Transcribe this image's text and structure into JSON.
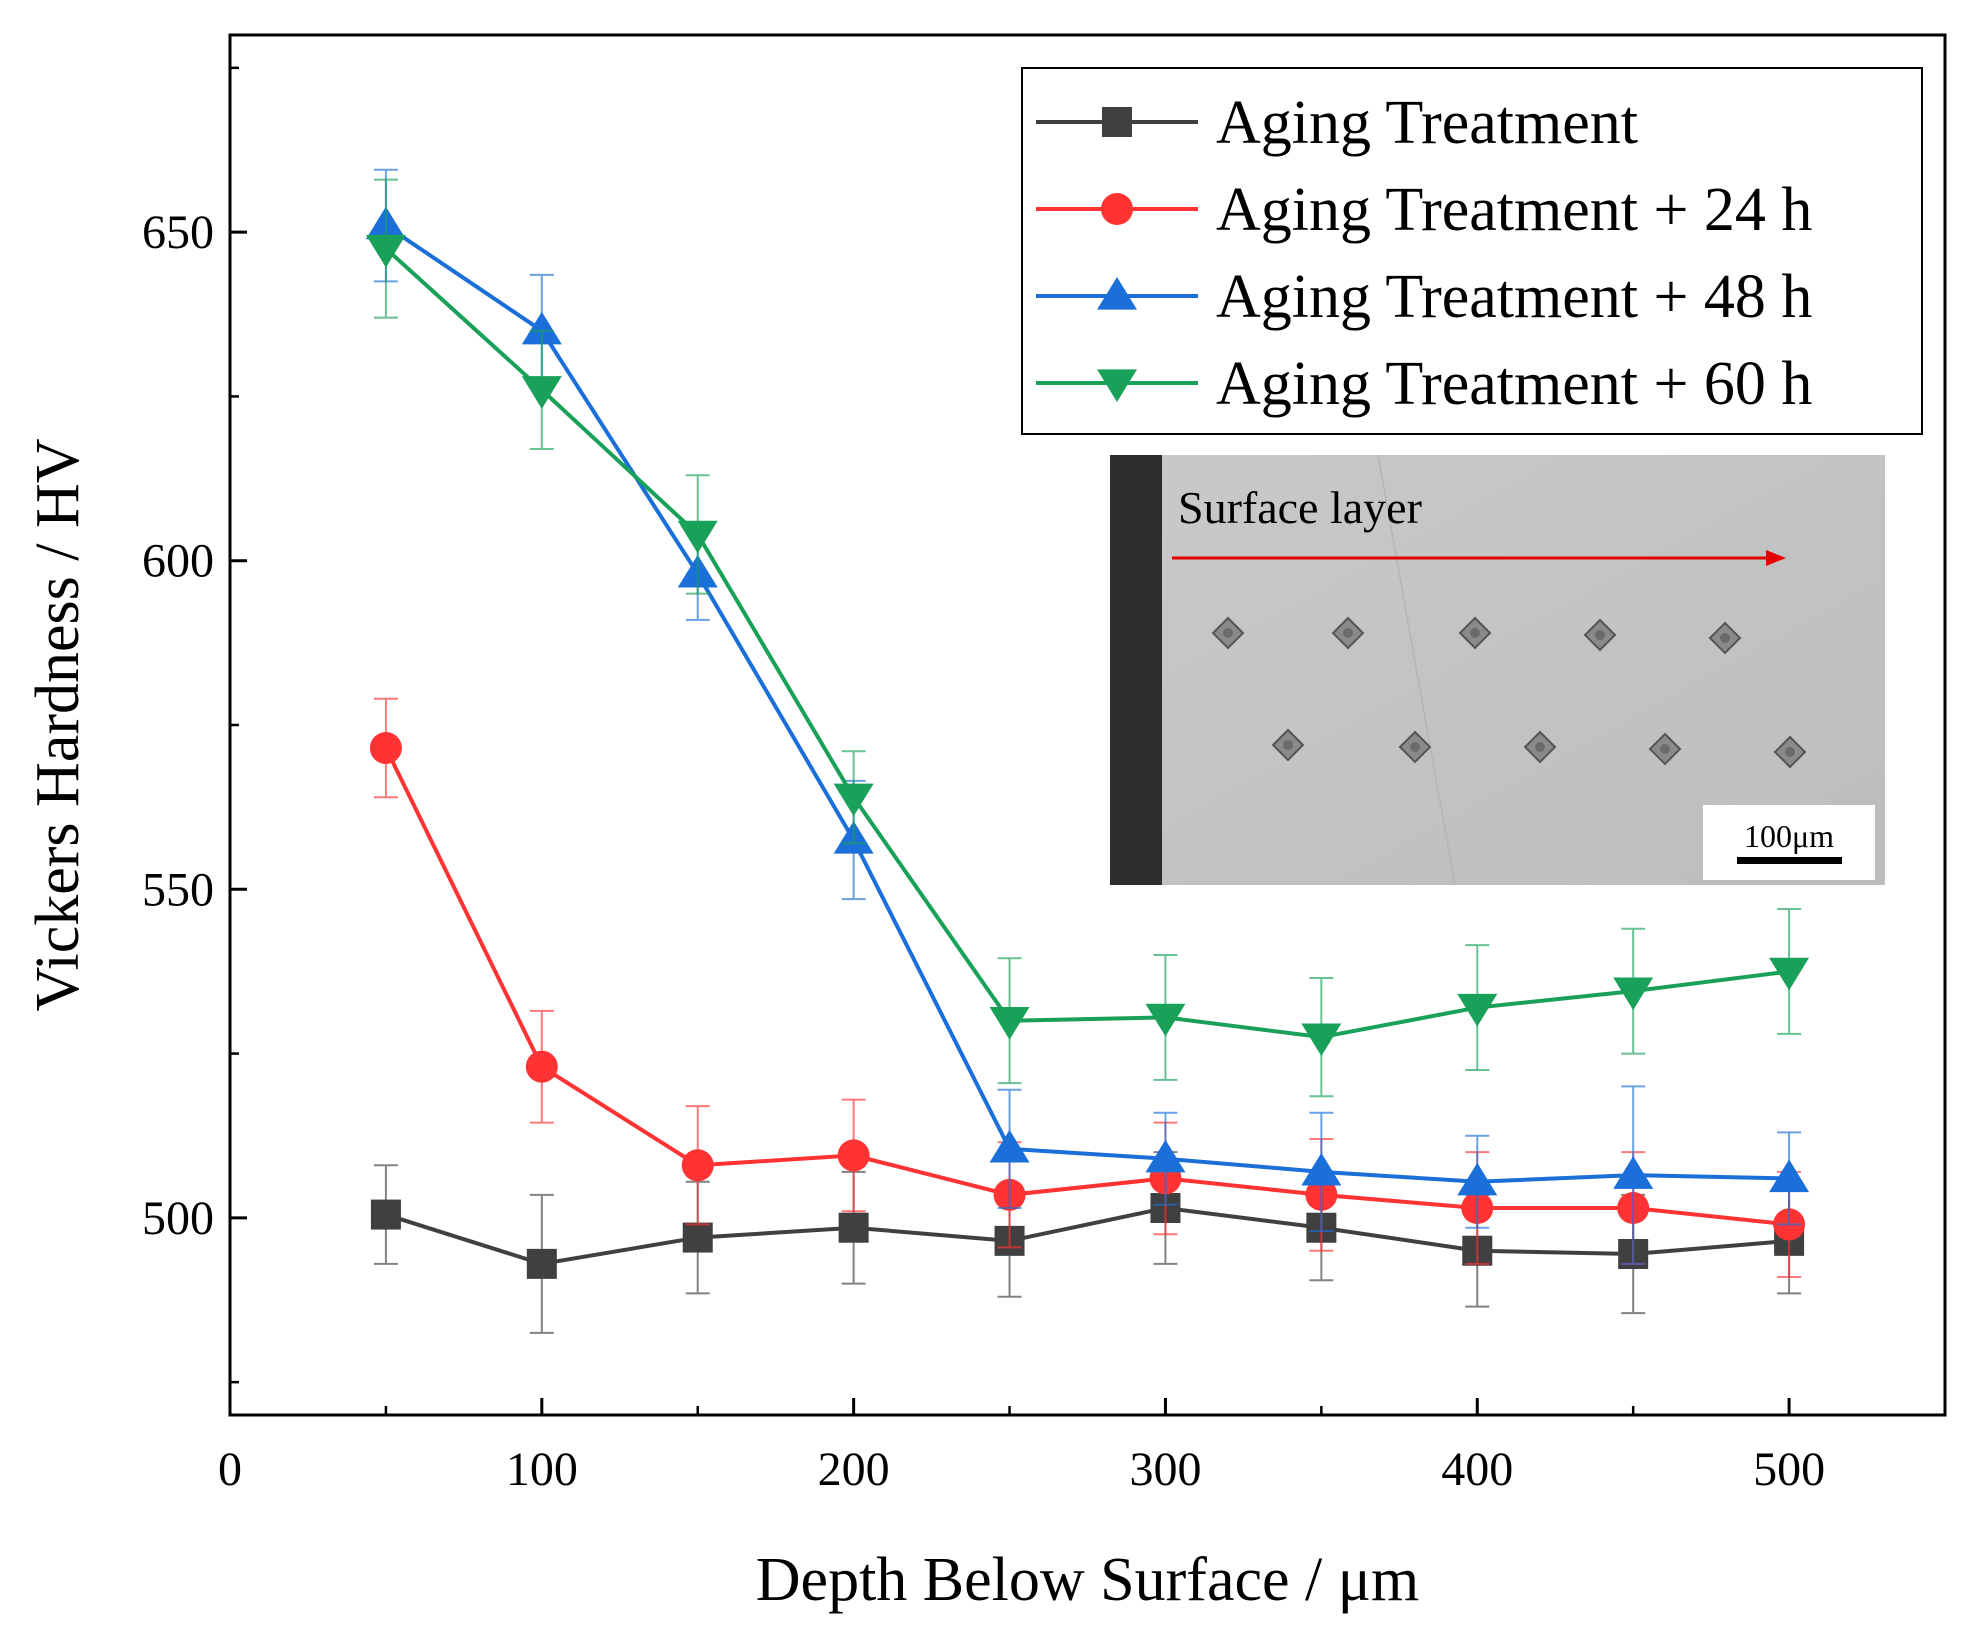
{
  "chart_data": {
    "type": "line",
    "title": "",
    "xlabel": "Depth Below Surface / μm",
    "ylabel": "Vickers Hardness / HV",
    "xlim": [
      0,
      550
    ],
    "ylim": [
      470,
      680
    ],
    "x_ticks": [
      0,
      100,
      200,
      300,
      400,
      500
    ],
    "x_tick_labels": [
      "0",
      "100",
      "200",
      "300",
      "400",
      "500"
    ],
    "y_ticks": [
      500,
      550,
      600,
      650
    ],
    "y_tick_labels": [
      "500",
      "550",
      "600",
      "650"
    ],
    "x": [
      50,
      100,
      150,
      200,
      250,
      300,
      350,
      400,
      450,
      500
    ],
    "legend_position": "top-right",
    "series": [
      {
        "name": "Aging Treatment",
        "color": "#404040",
        "marker": "square",
        "values": [
          500.5,
          493,
          497,
          498.5,
          496.5,
          501.5,
          498.5,
          495,
          494.5,
          496.5
        ],
        "errors": [
          7.5,
          10.5,
          8.5,
          8.5,
          8.5,
          8.5,
          8.0,
          8.5,
          9.0,
          8.0
        ]
      },
      {
        "name": "Aging Treatment + 24 h",
        "color": "#ff3333",
        "marker": "circle",
        "values": [
          571.5,
          523,
          508,
          509.5,
          503.5,
          506,
          503.5,
          501.5,
          501.5,
          499
        ],
        "errors": [
          7.5,
          8.5,
          9.0,
          8.5,
          8.0,
          8.5,
          8.5,
          8.5,
          8.5,
          8.0
        ]
      },
      {
        "name": "Aging Treatment + 48 h",
        "color": "#1a6fd8",
        "marker": "triangle-up",
        "values": [
          651,
          635,
          598,
          557.5,
          510.5,
          509,
          507,
          505.5,
          506.5,
          506
        ],
        "errors": [
          8.5,
          8.5,
          7.0,
          9.0,
          9.0,
          7.0,
          9.0,
          7.0,
          13.5,
          7.0
        ]
      },
      {
        "name": "Aging Treatment + 60 h",
        "color": "#19a15a",
        "marker": "triangle-down",
        "values": [
          647.5,
          626,
          604,
          564,
          530,
          530.5,
          527.5,
          532,
          534.5,
          537.5
        ],
        "errors": [
          10.5,
          9.0,
          9.0,
          7.0,
          9.5,
          9.5,
          9.0,
          9.5,
          9.5,
          9.5
        ]
      }
    ],
    "inset": {
      "label": "Surface layer",
      "scale_bar": "100μm"
    }
  }
}
